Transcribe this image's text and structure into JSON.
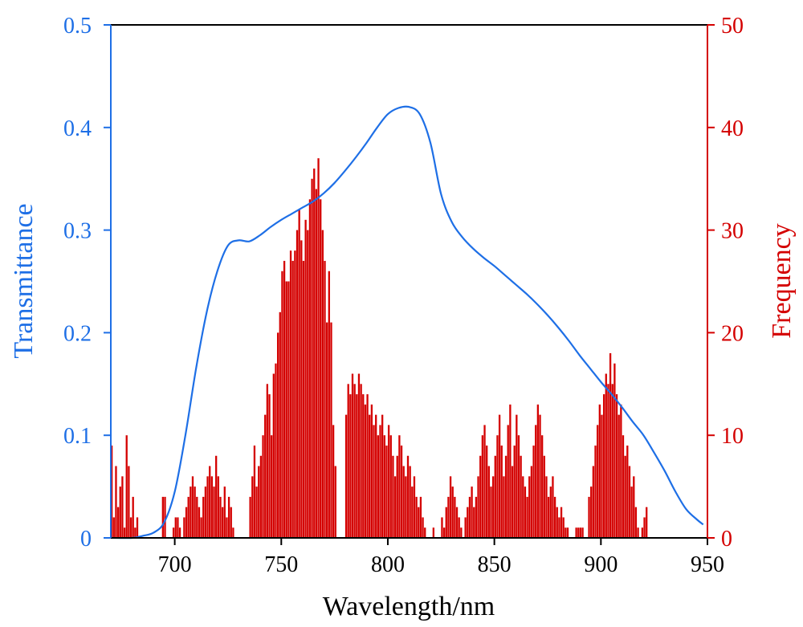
{
  "chart_data": {
    "type": "bar+line",
    "xlabel": "Wavelength/nm",
    "ylabel_left": "Transmittance",
    "ylabel_right": "Frequency",
    "xlim": [
      670,
      950
    ],
    "ylim_left": [
      0,
      0.5
    ],
    "ylim_right": [
      0,
      50
    ],
    "x_ticks": [
      700,
      750,
      800,
      850,
      900,
      950
    ],
    "y_left_ticks": [
      0,
      0.1,
      0.2,
      0.3,
      0.4,
      0.5
    ],
    "y_left_tick_labels": [
      "0",
      "0.1",
      "0.2",
      "0.3",
      "0.4",
      "0.5"
    ],
    "y_right_ticks": [
      0,
      10,
      20,
      30,
      40,
      50
    ],
    "colors": {
      "transmittance": "#1e6fe6",
      "frequency": "#d40000",
      "axis": "#000000"
    },
    "series": [
      {
        "kind": "line",
        "axis": "left",
        "x": [
          670,
          680,
          685,
          690,
          695,
          700,
          705,
          710,
          715,
          720,
          725,
          730,
          735,
          740,
          745,
          750,
          755,
          760,
          765,
          770,
          775,
          780,
          785,
          790,
          795,
          800,
          805,
          810,
          815,
          820,
          825,
          830,
          835,
          840,
          845,
          850,
          855,
          860,
          865,
          870,
          875,
          880,
          885,
          890,
          895,
          900,
          905,
          910,
          915,
          920,
          925,
          930,
          935,
          940,
          945,
          948
        ],
        "y": [
          0.0,
          0.0,
          0.002,
          0.005,
          0.015,
          0.045,
          0.1,
          0.165,
          0.22,
          0.26,
          0.285,
          0.29,
          0.289,
          0.295,
          0.303,
          0.31,
          0.316,
          0.322,
          0.328,
          0.336,
          0.346,
          0.358,
          0.371,
          0.385,
          0.4,
          0.413,
          0.419,
          0.42,
          0.413,
          0.385,
          0.335,
          0.308,
          0.293,
          0.282,
          0.273,
          0.265,
          0.256,
          0.247,
          0.238,
          0.228,
          0.217,
          0.205,
          0.192,
          0.178,
          0.165,
          0.152,
          0.14,
          0.127,
          0.113,
          0.1,
          0.083,
          0.065,
          0.045,
          0.028,
          0.018,
          0.013
        ]
      },
      {
        "kind": "bar",
        "axis": "right",
        "x_start": 670,
        "bin_width": 1,
        "values": [
          9,
          2,
          7,
          3,
          5,
          6,
          1,
          10,
          7,
          2,
          4,
          1,
          2,
          0,
          0,
          0,
          0,
          0,
          0,
          0,
          0,
          0,
          0,
          0,
          4,
          4,
          0,
          0,
          0,
          1,
          2,
          2,
          1,
          0,
          2,
          3,
          4,
          5,
          6,
          5,
          4,
          3,
          2,
          4,
          5,
          6,
          7,
          6,
          5,
          8,
          6,
          4,
          3,
          5,
          2,
          4,
          3,
          1,
          0,
          0,
          0,
          0,
          0,
          0,
          0,
          4,
          6,
          9,
          5,
          7,
          8,
          10,
          12,
          15,
          14,
          10,
          16,
          17,
          20,
          22,
          26,
          27,
          25,
          25,
          28,
          27,
          28,
          30,
          32,
          29,
          27,
          31,
          30,
          33,
          35,
          36,
          34,
          37,
          33,
          30,
          27,
          21,
          26,
          21,
          11,
          7,
          0,
          0,
          0,
          0,
          12,
          15,
          14,
          16,
          15,
          14,
          16,
          15,
          14,
          13,
          14,
          12,
          13,
          11,
          12,
          10,
          11,
          12,
          10,
          9,
          11,
          10,
          8,
          6,
          8,
          10,
          9,
          7,
          6,
          8,
          7,
          5,
          6,
          4,
          3,
          4,
          2,
          1,
          0,
          0,
          0,
          1,
          0,
          0,
          0,
          2,
          1,
          3,
          4,
          6,
          5,
          4,
          3,
          2,
          1,
          0,
          2,
          3,
          4,
          5,
          3,
          4,
          6,
          8,
          10,
          11,
          9,
          7,
          5,
          6,
          8,
          10,
          12,
          9,
          6,
          8,
          11,
          13,
          7,
          9,
          12,
          10,
          8,
          6,
          5,
          4,
          6,
          7,
          9,
          11,
          13,
          12,
          10,
          8,
          6,
          4,
          5,
          6,
          4,
          3,
          2,
          3,
          2,
          1,
          1,
          0,
          0,
          0,
          1,
          1,
          1,
          1,
          0,
          0,
          4,
          5,
          7,
          9,
          11,
          13,
          12,
          14,
          16,
          15,
          18,
          15,
          17,
          14,
          12,
          13,
          10,
          8,
          9,
          7,
          5,
          6,
          3,
          1,
          0,
          1,
          2,
          3
        ]
      }
    ]
  }
}
